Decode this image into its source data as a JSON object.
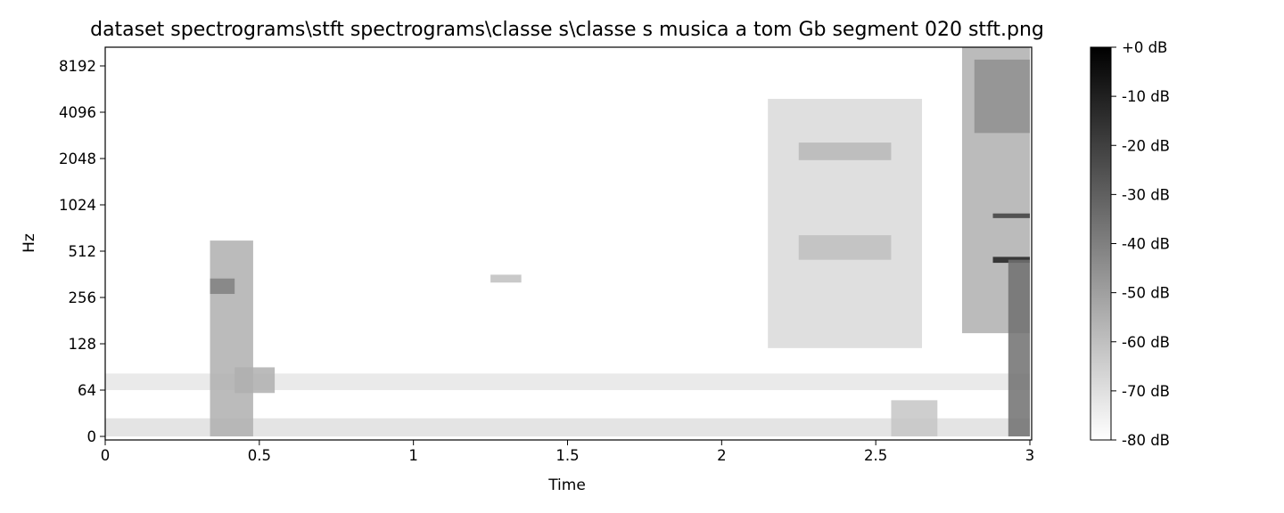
{
  "chart_data": {
    "type": "heatmap",
    "title": "dataset spectrograms\\stft spectrograms\\classe s\\classe s musica a tom Gb segment 020 stft.png",
    "xlabel": "Time",
    "ylabel": "Hz",
    "xlim": [
      0,
      3
    ],
    "x_ticks": [
      "0",
      "0.5",
      "1",
      "1.5",
      "2",
      "2.5",
      "3"
    ],
    "x_tick_values": [
      0,
      0.5,
      1,
      1.5,
      2,
      2.5,
      3
    ],
    "y_scale": "symlog",
    "y_ticks": [
      "0",
      "64",
      "128",
      "256",
      "512",
      "1024",
      "2048",
      "4096",
      "8192"
    ],
    "y_tick_values": [
      0,
      64,
      128,
      256,
      512,
      1024,
      2048,
      4096,
      8192
    ],
    "colormap": "gray_r",
    "colorbar": {
      "range": [
        -80,
        0
      ],
      "ticks": [
        "+0 dB",
        "-10 dB",
        "-20 dB",
        "-30 dB",
        "-40 dB",
        "-50 dB",
        "-60 dB",
        "-70 dB",
        "-80 dB"
      ],
      "tick_values": [
        0,
        -10,
        -20,
        -30,
        -40,
        -50,
        -60,
        -70,
        -80
      ]
    },
    "regions": [
      {
        "t": [
          0.0,
          3.0
        ],
        "f": [
          0,
          25
        ],
        "db": -70
      },
      {
        "t": [
          0.0,
          3.0
        ],
        "f": [
          64,
          82
        ],
        "db": -72
      },
      {
        "t": [
          0.34,
          0.48
        ],
        "f": [
          0,
          600
        ],
        "db": -55
      },
      {
        "t": [
          0.34,
          0.42
        ],
        "f": [
          270,
          340
        ],
        "db": -40
      },
      {
        "t": [
          0.42,
          0.55
        ],
        "f": [
          60,
          90
        ],
        "db": -55
      },
      {
        "t": [
          1.25,
          1.35
        ],
        "f": [
          320,
          360
        ],
        "db": -60
      },
      {
        "t": [
          2.15,
          2.65
        ],
        "f": [
          120,
          5000
        ],
        "db": -68
      },
      {
        "t": [
          2.25,
          2.55
        ],
        "f": [
          2000,
          2600
        ],
        "db": -58
      },
      {
        "t": [
          2.25,
          2.55
        ],
        "f": [
          450,
          650
        ],
        "db": -60
      },
      {
        "t": [
          2.55,
          2.7
        ],
        "f": [
          0,
          50
        ],
        "db": -62
      },
      {
        "t": [
          2.78,
          3.0
        ],
        "f": [
          150,
          11000
        ],
        "db": -55
      },
      {
        "t": [
          2.82,
          3.0
        ],
        "f": [
          3000,
          9000
        ],
        "db": -45
      },
      {
        "t": [
          2.88,
          3.0
        ],
        "f": [
          430,
          470
        ],
        "db": -10
      },
      {
        "t": [
          2.88,
          3.0
        ],
        "f": [
          840,
          900
        ],
        "db": -20
      },
      {
        "t": [
          2.93,
          3.0
        ],
        "f": [
          0,
          450
        ],
        "db": -35
      }
    ]
  }
}
